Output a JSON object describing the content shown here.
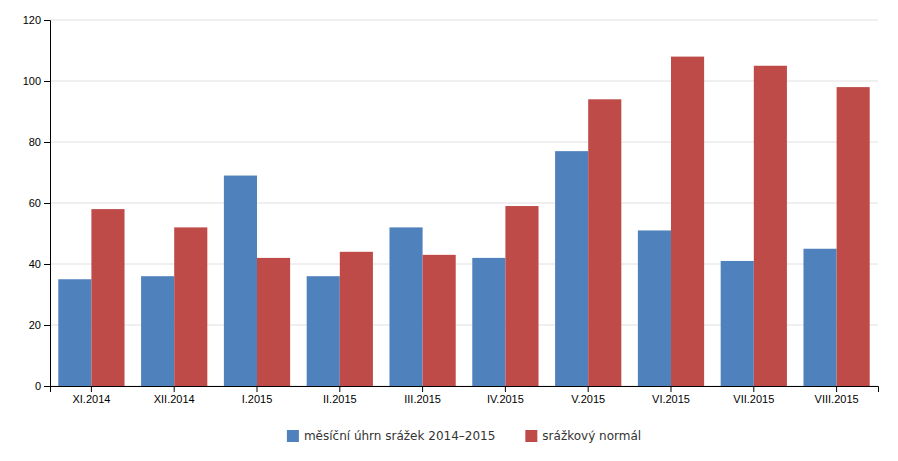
{
  "chart_data": {
    "type": "bar",
    "categories": [
      "XI.2014",
      "XII.2014",
      "I.2015",
      "II.2015",
      "III.2015",
      "IV.2015",
      "V.2015",
      "VI.2015",
      "VII.2015",
      "VIII.2015"
    ],
    "series": [
      {
        "name": "měsíční úhrn srážek 2014–2015",
        "color": "#4F81BD",
        "values": [
          35,
          36,
          69,
          36,
          52,
          42,
          77,
          51,
          41,
          45
        ]
      },
      {
        "name": "srážkový normál",
        "color": "#BE4B48",
        "values": [
          58,
          52,
          42,
          44,
          43,
          59,
          94,
          108,
          105,
          98
        ]
      }
    ],
    "ylim": [
      0,
      120
    ],
    "yticks": [
      0,
      20,
      40,
      60,
      80,
      100,
      120
    ],
    "grid": true,
    "legend": "bottom"
  }
}
